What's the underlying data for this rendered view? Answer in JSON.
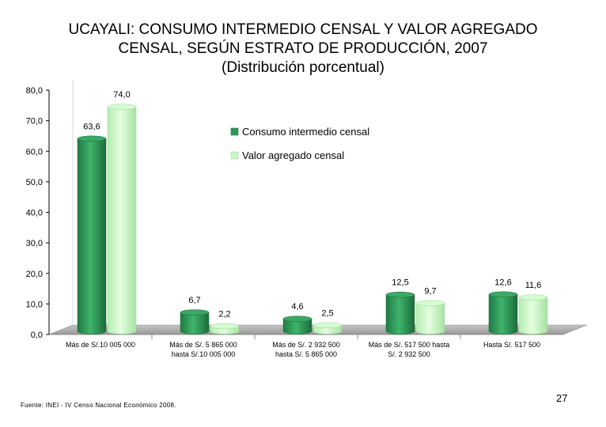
{
  "title_lines": [
    "UCAYALI: CONSUMO INTERMEDIO CENSAL Y VALOR AGREGADO",
    "CENSAL, SEGÚN ESTRATO DE PRODUCCIÓN, 2007",
    "(Distribución porcentual)"
  ],
  "chart_data": {
    "type": "bar",
    "title": "UCAYALI: CONSUMO INTERMEDIO CENSAL Y VALOR AGREGADO CENSAL, SEGÚN ESTRATO DE PRODUCCIÓN, 2007 (Distribución porcentual)",
    "categories": [
      [
        "Más de S/.10 005 000"
      ],
      [
        "Más de S/. 5 865 000",
        "hasta S/.10 005 000"
      ],
      [
        "Más de S/. 2 932 500",
        "hasta  S/. 5 865 000"
      ],
      [
        "Más de S/. 517 500  hasta",
        "S/. 2 932 500"
      ],
      [
        "Hasta S/. 517 500"
      ]
    ],
    "series": [
      {
        "name": "Consumo intermedio censal",
        "values": [
          63.6,
          6.7,
          4.6,
          12.5,
          12.6
        ],
        "labels": [
          "63,6",
          "6,7",
          "4,6",
          "12,5",
          "12,6"
        ],
        "color": "#2e9a58"
      },
      {
        "name": "Valor agregado censal",
        "values": [
          74.0,
          2.2,
          2.5,
          9.7,
          11.6
        ],
        "labels": [
          "74,0",
          "2,2",
          "2,5",
          "9,7",
          "11,6"
        ],
        "color": "#c9f7c4"
      }
    ],
    "yticks": [
      "0,0",
      "10,0",
      "20,0",
      "30,0",
      "40,0",
      "50,0",
      "60,0",
      "70,0",
      "80,0"
    ],
    "ylim": [
      0,
      80
    ],
    "xlabel": "",
    "ylabel": "",
    "legend_position": "top-center",
    "grid": false
  },
  "footer": {
    "source": "Fuente: INEI - IV Censo Nacional Económico 2008.",
    "page_number": "27"
  }
}
